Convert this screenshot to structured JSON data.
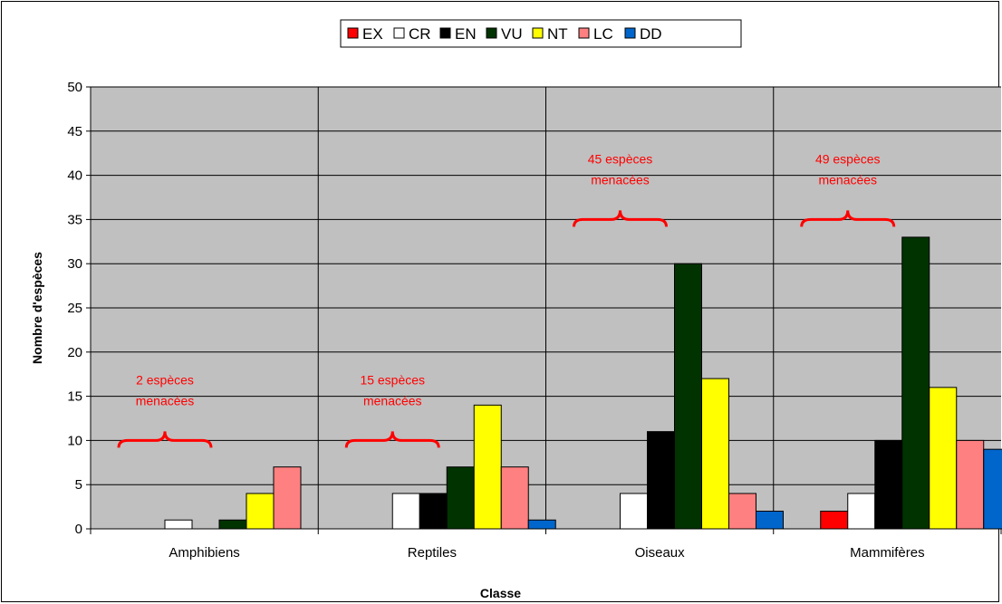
{
  "chart_data": {
    "type": "bar",
    "title": "",
    "xlabel": "Classe",
    "ylabel": "Nombre d'espèces",
    "ylim": [
      0,
      50
    ],
    "yticks": [
      0,
      5,
      10,
      15,
      20,
      25,
      30,
      35,
      40,
      45,
      50
    ],
    "grid": "horizontal",
    "legend_position": "top",
    "categories": [
      "Amphibiens",
      "Reptiles",
      "Oiseaux",
      "Mammifères"
    ],
    "series": [
      {
        "name": "EX",
        "color": "#ff0000",
        "values": [
          0,
          0,
          0,
          2
        ]
      },
      {
        "name": "CR",
        "color": "#ffffff",
        "values": [
          1,
          4,
          4,
          4
        ]
      },
      {
        "name": "EN",
        "color": "#000000",
        "values": [
          0,
          4,
          11,
          10
        ]
      },
      {
        "name": "VU",
        "color": "#003300",
        "values": [
          1,
          7,
          30,
          33
        ]
      },
      {
        "name": "NT",
        "color": "#ffff00",
        "values": [
          4,
          14,
          17,
          16
        ]
      },
      {
        "name": "LC",
        "color": "#ff8080",
        "values": [
          7,
          7,
          4,
          10
        ]
      },
      {
        "name": "DD",
        "color": "#0066cc",
        "values": [
          0,
          1,
          2,
          9
        ]
      }
    ],
    "annotations": [
      {
        "category": "Amphibiens",
        "lines": [
          "2 espèces",
          "menacées"
        ],
        "y": 10
      },
      {
        "category": "Reptiles",
        "lines": [
          "15 espèces",
          "menacées"
        ],
        "y": 10
      },
      {
        "category": "Oiseaux",
        "lines": [
          "45 espèces",
          "menacées"
        ],
        "y": 35
      },
      {
        "category": "Mammifères",
        "lines": [
          "49 espèces",
          "menacées"
        ],
        "y": 35
      }
    ],
    "colors": {
      "plot_background": "#c0c0c0",
      "annotation": "#ff0000"
    }
  }
}
